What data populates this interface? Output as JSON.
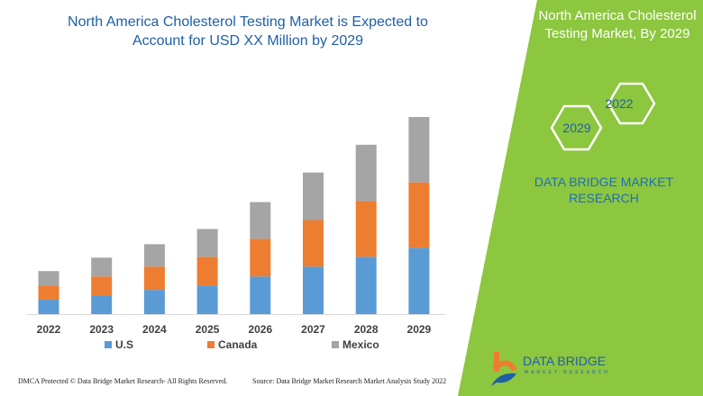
{
  "header": {
    "title": "North America Cholesterol Testing Market is Expected to Account for USD XX Million by 2029"
  },
  "side_panel": {
    "title": "North America Cholesterol Testing Market, By 2029",
    "hex_labels": [
      "2022",
      "2029"
    ],
    "brand": "DATA BRIDGE MARKET RESEARCH",
    "accent": "#8dc63f"
  },
  "chart_data": {
    "type": "bar",
    "stacked": true,
    "title": "",
    "xlabel": "",
    "ylabel": "",
    "categories": [
      "2022",
      "2023",
      "2024",
      "2025",
      "2026",
      "2027",
      "2028",
      "2029"
    ],
    "series": [
      {
        "name": "U.S",
        "color": "#5b9bd5",
        "values": [
          16,
          21,
          27,
          32,
          42,
          53,
          64,
          74
        ]
      },
      {
        "name": "Canada",
        "color": "#ed7d31",
        "values": [
          16,
          21,
          26,
          32,
          42,
          52,
          62,
          73
        ]
      },
      {
        "name": "Mexico",
        "color": "#a5a5a5",
        "values": [
          16,
          21,
          25,
          31,
          41,
          53,
          63,
          73
        ]
      }
    ],
    "ylim": [
      0,
      225
    ],
    "grid": false,
    "legend": "bottom"
  },
  "footer": {
    "copyright": "DMCA Protected © Data Bridge Market Research- All Rights Reserved.",
    "source": "Source: Data Bridge Market Research Market Analysis Study 2022"
  },
  "logo": {
    "text": "DATA BRIDGE",
    "sub": "MARKET RESEARCH"
  }
}
